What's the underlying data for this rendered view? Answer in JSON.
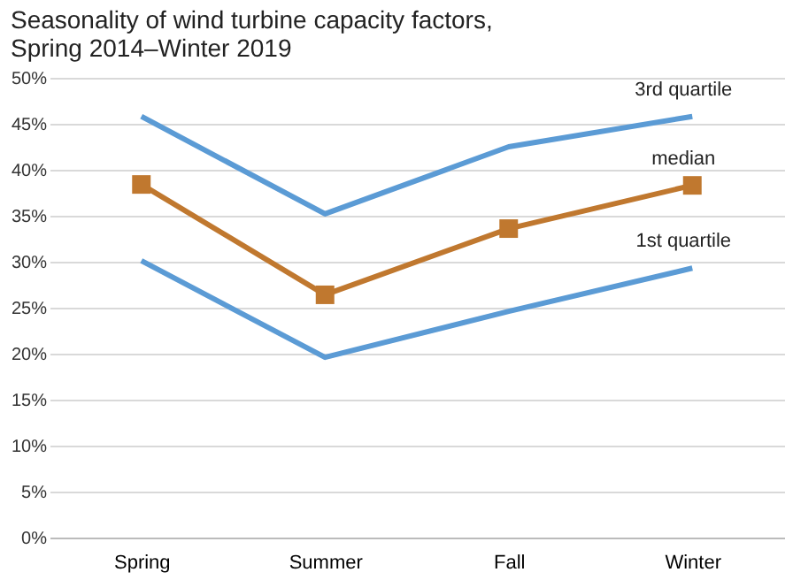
{
  "chart_data": {
    "type": "line",
    "title": [
      "Seasonality of wind turbine capacity factors,",
      "Spring 2014–Winter 2019"
    ],
    "categories": [
      "Spring",
      "Summer",
      "Fall",
      "Winter"
    ],
    "series": [
      {
        "name": "3rd quartile",
        "color": "#5b9bd5",
        "values": [
          45.8,
          35.2,
          42.5,
          45.8
        ],
        "marker": "none"
      },
      {
        "name": "median",
        "color": "#c0782f",
        "values": [
          38.4,
          26.4,
          33.6,
          38.3
        ],
        "marker": "square"
      },
      {
        "name": "1st quartile",
        "color": "#5b9bd5",
        "values": [
          30.1,
          19.6,
          24.6,
          29.3
        ],
        "marker": "none"
      }
    ],
    "ylim": [
      0,
      50
    ],
    "yticks": [
      {
        "value": 0,
        "label": "0%"
      },
      {
        "value": 5,
        "label": "5%"
      },
      {
        "value": 10,
        "label": "10%"
      },
      {
        "value": 15,
        "label": "15%"
      },
      {
        "value": 20,
        "label": "20%"
      },
      {
        "value": 25,
        "label": "25%"
      },
      {
        "value": 30,
        "label": "30%"
      },
      {
        "value": 35,
        "label": "35%"
      },
      {
        "value": 40,
        "label": "40%"
      },
      {
        "value": 45,
        "label": "45%"
      },
      {
        "value": 50,
        "label": "50%"
      }
    ],
    "grid": "y"
  }
}
